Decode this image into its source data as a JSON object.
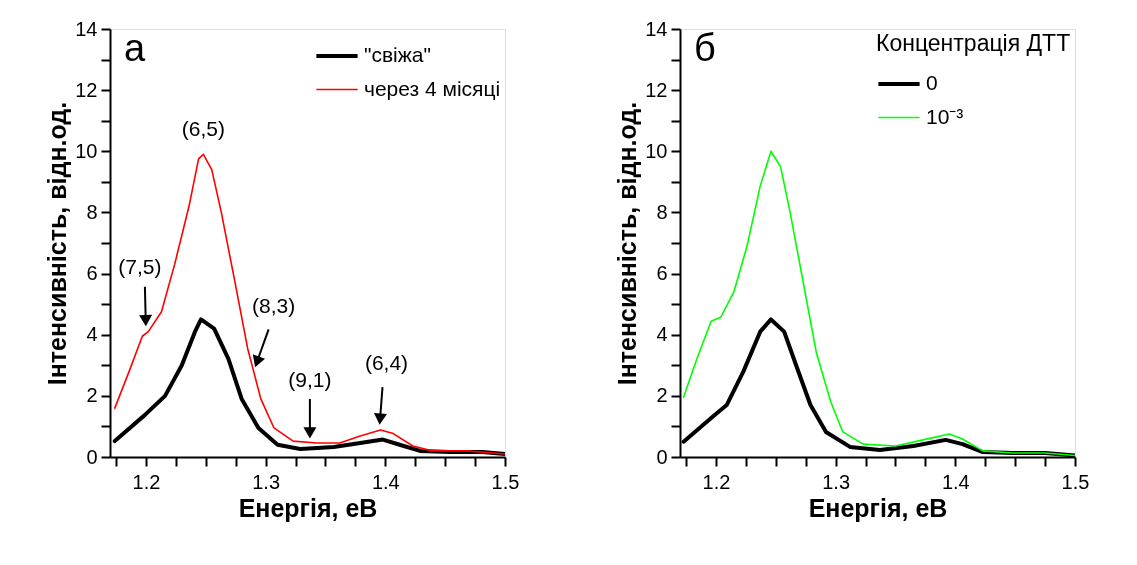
{
  "chart_data": [
    {
      "type": "line",
      "xlabel": "Енергія, еВ",
      "ylabel": "Інтенсивність, відн.од.",
      "legend": "top right",
      "xlim": [
        1.17,
        1.5
      ],
      "xticks": [
        {
          "value": 1.175,
          "label": null
        },
        1.2,
        {
          "value": 1.225,
          "label": null
        },
        {
          "value": 1.25,
          "label": null
        },
        {
          "value": 1.275,
          "label": null
        },
        1.3,
        {
          "value": 1.325,
          "label": null
        },
        {
          "value": 1.35,
          "label": null
        },
        {
          "value": 1.375,
          "label": null
        },
        1.4,
        {
          "value": 1.425,
          "label": null
        },
        {
          "value": 1.45,
          "label": null
        },
        {
          "value": 1.475,
          "label": null
        },
        1.5
      ],
      "ylim": [
        0,
        14
      ],
      "yticks": [
        0,
        {
          "value": 1,
          "label": null
        },
        2,
        {
          "value": 3,
          "label": null
        },
        4,
        {
          "value": 5,
          "label": null
        },
        6,
        {
          "value": 7,
          "label": null
        },
        8,
        {
          "value": 9,
          "label": null
        },
        10,
        {
          "value": 11,
          "label": null
        },
        12,
        {
          "value": 13,
          "label": null
        },
        14
      ],
      "series": [
        {
          "name": "\"свіжа\"",
          "color": "#000000",
          "x": [
            1.174,
            1.199,
            1.216,
            1.23,
            1.241,
            1.246,
            1.257,
            1.269,
            1.28,
            1.294,
            1.31,
            1.329,
            1.357,
            1.379,
            1.398,
            1.412,
            1.429,
            1.454,
            1.481,
            1.5
          ],
          "values": [
            0.52,
            1.37,
            2.0,
            3.0,
            4.1,
            4.5,
            4.2,
            3.2,
            1.9,
            0.95,
            0.4,
            0.26,
            0.33,
            0.46,
            0.57,
            0.4,
            0.2,
            0.16,
            0.16,
            0.1
          ]
        },
        {
          "name": "через 4 місяці",
          "color": "#ff0000",
          "x": [
            1.174,
            1.186,
            1.197,
            1.202,
            1.213,
            1.224,
            1.236,
            1.244,
            1.248,
            1.255,
            1.263,
            1.274,
            1.285,
            1.296,
            1.307,
            1.323,
            1.343,
            1.362,
            1.379,
            1.396,
            1.406,
            1.423,
            1.439,
            1.468,
            1.5
          ],
          "values": [
            1.6,
            2.8,
            3.95,
            4.1,
            4.75,
            6.3,
            8.2,
            9.75,
            9.9,
            9.4,
            8.0,
            5.8,
            3.55,
            1.9,
            0.95,
            0.52,
            0.46,
            0.46,
            0.69,
            0.88,
            0.78,
            0.36,
            0.2,
            0.2,
            0.1
          ]
        }
      ],
      "annotations": [
        "а",
        {
          "text": "(7,5)",
          "x": 1.2,
          "y": 4.1
        },
        {
          "text": "(6,5)",
          "x": 1.248,
          "y": 9.9
        },
        {
          "text": "(8,3)",
          "x": 1.29,
          "y": 2.8
        },
        {
          "text": "(9,1)",
          "x": 1.337,
          "y": 0.46
        },
        {
          "text": "(6,4)",
          "x": 1.396,
          "y": 0.88
        }
      ]
    },
    {
      "type": "line",
      "xlabel": "Енергія, еВ",
      "ylabel": "Інтенсивність, відн.од.",
      "legend": "top right",
      "legend_title": "Концентрація ДТТ",
      "xlim": [
        1.17,
        1.5
      ],
      "xticks": [
        {
          "value": 1.175,
          "label": null
        },
        1.2,
        {
          "value": 1.225,
          "label": null
        },
        {
          "value": 1.25,
          "label": null
        },
        {
          "value": 1.275,
          "label": null
        },
        1.3,
        {
          "value": 1.325,
          "label": null
        },
        {
          "value": 1.35,
          "label": null
        },
        {
          "value": 1.375,
          "label": null
        },
        1.4,
        {
          "value": 1.425,
          "label": null
        },
        {
          "value": 1.45,
          "label": null
        },
        {
          "value": 1.475,
          "label": null
        },
        1.5
      ],
      "ylim": [
        0,
        14
      ],
      "yticks": [
        0,
        {
          "value": 1,
          "label": null
        },
        2,
        {
          "value": 3,
          "label": null
        },
        4,
        {
          "value": 5,
          "label": null
        },
        6,
        {
          "value": 7,
          "label": null
        },
        8,
        {
          "value": 9,
          "label": null
        },
        10,
        {
          "value": 11,
          "label": null
        },
        12,
        {
          "value": 13,
          "label": null
        },
        14
      ],
      "series": [
        {
          "name": "0",
          "color": "#000000",
          "x": [
            1.173,
            1.198,
            1.209,
            1.223,
            1.237,
            1.246,
            1.257,
            1.267,
            1.279,
            1.292,
            1.312,
            1.337,
            1.365,
            1.392,
            1.406,
            1.423,
            1.448,
            1.475,
            1.5
          ],
          "values": [
            0.5,
            1.34,
            1.7,
            2.8,
            4.1,
            4.5,
            4.1,
            3.0,
            1.7,
            0.82,
            0.33,
            0.23,
            0.36,
            0.56,
            0.42,
            0.16,
            0.13,
            0.13,
            0.05
          ]
        },
        {
          "name": "10⁻³",
          "color": "#00ff00",
          "x": [
            1.173,
            1.184,
            1.196,
            1.204,
            1.215,
            1.226,
            1.237,
            1.246,
            1.254,
            1.262,
            1.273,
            1.284,
            1.296,
            1.306,
            1.323,
            1.35,
            1.373,
            1.395,
            1.406,
            1.423,
            1.448,
            1.475,
            1.5
          ],
          "values": [
            1.96,
            3.2,
            4.44,
            4.57,
            5.4,
            6.9,
            8.86,
            10.0,
            9.5,
            8.0,
            5.7,
            3.4,
            1.8,
            0.82,
            0.42,
            0.36,
            0.56,
            0.75,
            0.59,
            0.2,
            0.13,
            0.13,
            0.05
          ]
        }
      ],
      "annotations": [
        "б"
      ]
    }
  ]
}
